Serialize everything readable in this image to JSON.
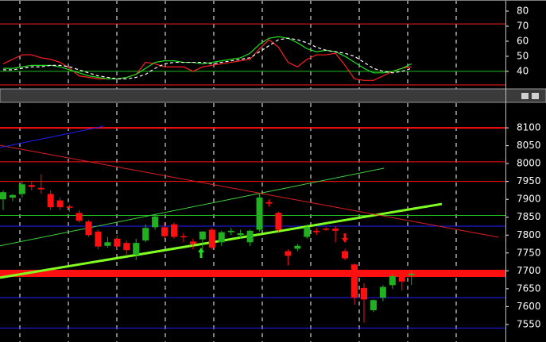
{
  "chart_data": [
    {
      "type": "line",
      "ylim": [
        28.9,
        85.8
      ],
      "yticks": [
        40,
        50,
        60,
        70,
        80
      ],
      "xlim": [
        -0.33,
        52.9
      ],
      "levels": [
        {
          "value": 71.5,
          "color": "#ff2020"
        },
        {
          "value": 40,
          "color": "#20c020"
        },
        {
          "value": 31,
          "color": "#ff2020"
        }
      ],
      "series": [
        {
          "color": "#ff2020",
          "dash": false,
          "values": [
            45,
            48,
            51,
            51,
            49,
            48,
            46,
            42,
            37,
            36,
            35,
            35,
            35,
            36,
            38,
            46,
            45,
            43,
            43,
            43,
            40,
            43,
            44,
            45,
            46,
            47,
            48,
            55,
            61,
            56,
            46,
            43,
            48,
            51,
            51,
            52,
            44,
            35,
            34,
            34,
            37,
            40,
            42,
            43
          ]
        },
        {
          "color": "#20e020",
          "dash": false,
          "values": [
            42,
            42,
            43,
            44,
            44,
            44,
            43,
            41,
            39,
            37,
            36,
            35,
            35,
            36,
            38,
            42,
            46,
            47,
            47,
            46,
            46,
            45,
            46,
            47,
            48,
            49,
            52,
            58,
            62,
            63,
            62,
            59,
            55,
            53,
            54,
            53,
            50,
            46,
            42,
            39,
            39,
            40,
            42,
            45
          ]
        },
        {
          "color": "#ffffff",
          "dash": true,
          "values": [
            41,
            41,
            42,
            43,
            43,
            44,
            44,
            43,
            41,
            39,
            37,
            36,
            35,
            35,
            36,
            38,
            42,
            45,
            46,
            46,
            46,
            46,
            45,
            46,
            47,
            48,
            49,
            53,
            57,
            61,
            62,
            61,
            59,
            56,
            54,
            53,
            52,
            50,
            46,
            42,
            40,
            39,
            40,
            42
          ]
        }
      ]
    },
    {
      "type": "candlestick",
      "ylim": [
        7501,
        8169
      ],
      "yticks": [
        7550,
        7600,
        7650,
        7700,
        7750,
        7800,
        7850,
        7900,
        7950,
        8000,
        8050,
        8100
      ],
      "xlim": [
        -0.33,
        52.9
      ],
      "up_color": "#20b020",
      "down_color": "#ff1010",
      "open": [
        7900,
        7905,
        7915,
        7940,
        7932,
        7915,
        7897,
        7880,
        7862,
        7838,
        7810,
        7770,
        7790,
        7778,
        7745,
        7785,
        7822,
        7822,
        7830,
        7797,
        7782,
        7788,
        7815,
        7780,
        7808,
        7800,
        7780,
        7815,
        7892,
        7862,
        7755,
        7762,
        7795,
        7812,
        7818,
        7818,
        7755,
        7718,
        7652,
        7590,
        7625,
        7660,
        7685,
        7688
      ],
      "high": [
        7925,
        7915,
        7950,
        7950,
        7970,
        7925,
        7905,
        7885,
        7870,
        7842,
        7815,
        7795,
        7800,
        7785,
        7790,
        7830,
        7860,
        7835,
        7835,
        7805,
        7790,
        7810,
        7820,
        7812,
        7820,
        7815,
        7815,
        7915,
        7900,
        7865,
        7760,
        7775,
        7830,
        7820,
        7822,
        7825,
        7762,
        7720,
        7665,
        7620,
        7660,
        7690,
        7695,
        7700
      ],
      "low": [
        7870,
        7895,
        7905,
        7925,
        7915,
        7870,
        7870,
        7865,
        7835,
        7795,
        7760,
        7765,
        7760,
        7745,
        7730,
        7780,
        7815,
        7790,
        7790,
        7780,
        7760,
        7760,
        7760,
        7770,
        7800,
        7790,
        7770,
        7810,
        7880,
        7810,
        7715,
        7755,
        7790,
        7800,
        7812,
        7780,
        7730,
        7605,
        7555,
        7585,
        7615,
        7650,
        7645,
        7660
      ],
      "close": [
        7920,
        7912,
        7942,
        7935,
        7928,
        7878,
        7878,
        7878,
        7840,
        7800,
        7768,
        7780,
        7768,
        7758,
        7778,
        7820,
        7852,
        7797,
        7795,
        7795,
        7775,
        7810,
        7765,
        7808,
        7812,
        7805,
        7812,
        7905,
        7888,
        7815,
        7742,
        7770,
        7822,
        7808,
        7815,
        7812,
        7735,
        7625,
        7620,
        7618,
        7655,
        7685,
        7670,
        7692
      ],
      "levels": [
        {
          "value": 8100,
          "color": "#ff1010",
          "width": 2
        },
        {
          "value": 8005,
          "color": "#ff1010",
          "width": 1
        },
        {
          "value": 7950,
          "color": "#ff1010",
          "width": 1
        },
        {
          "value": 7855,
          "color": "#20c020",
          "width": 1
        },
        {
          "value": 7825,
          "color": "#2020ff",
          "width": 1
        },
        {
          "value": 7693,
          "color": "#ff1010",
          "width": 9
        },
        {
          "value": 7625,
          "color": "#2020ff",
          "width": 1
        },
        {
          "value": 7540,
          "color": "#2020ff",
          "width": 1
        }
      ],
      "trendlines": [
        {
          "x": [
            -0.33,
            46.2
          ],
          "y": [
            7681,
            7887
          ],
          "color": "#80ff20",
          "width": 3
        },
        {
          "x": [
            -0.33,
            40.1
          ],
          "y": [
            7770,
            7987
          ],
          "color": "#40d040",
          "width": 1
        },
        {
          "x": [
            -0.33,
            52.2
          ],
          "y": [
            8051,
            7794
          ],
          "color": "#e02020",
          "width": 1
        },
        {
          "x": [
            -0.33,
            10.5
          ],
          "y": [
            8045,
            8104
          ],
          "color": "#2020ff",
          "width": 1
        }
      ]
    }
  ]
}
